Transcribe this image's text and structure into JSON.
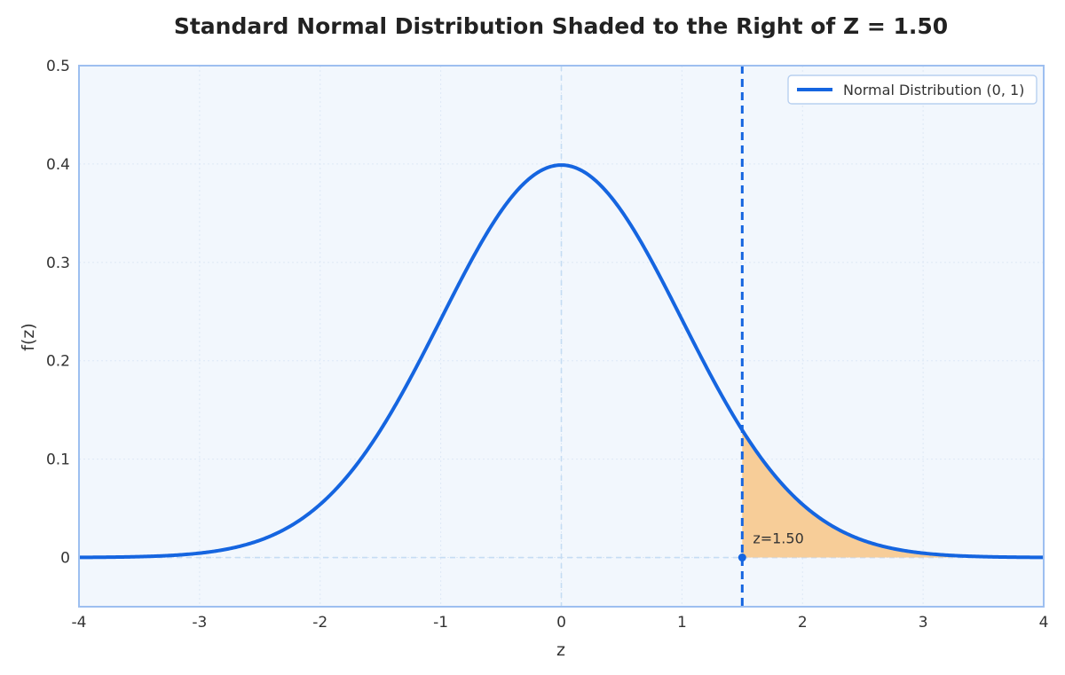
{
  "chart_data": {
    "type": "line",
    "title": "Standard Normal Distribution Shaded to the Right of Z = 1.50",
    "xlabel": "z",
    "ylabel": "f(z)",
    "xlim": [
      -4,
      4
    ],
    "ylim": [
      -0.05,
      0.5
    ],
    "x_ticks": [
      -4,
      -3,
      -2,
      -1,
      0,
      1,
      2,
      3,
      4
    ],
    "x_tick_labels": [
      "-4",
      "-3",
      "-2",
      "-1",
      "0",
      "1",
      "2",
      "3",
      "4"
    ],
    "y_ticks": [
      0,
      0.1,
      0.2,
      0.3,
      0.4,
      0.5
    ],
    "y_tick_labels": [
      "0",
      "0.1",
      "0.2",
      "0.3",
      "0.4",
      "0.5"
    ],
    "grid": true,
    "legend_position": "top-right",
    "series": [
      {
        "name": "Normal Distribution (0, 1)",
        "mean": 0,
        "sd": 1,
        "x": [
          -4,
          -3.5,
          -3,
          -2.5,
          -2,
          -1.5,
          -1,
          -0.5,
          0,
          0.5,
          1,
          1.5,
          2,
          2.5,
          3,
          3.5,
          4
        ],
        "y": [
          0.0001,
          0.0009,
          0.0044,
          0.0175,
          0.054,
          0.1295,
          0.242,
          0.3521,
          0.3989,
          0.3521,
          0.242,
          0.1295,
          0.054,
          0.0175,
          0.0044,
          0.0009,
          0.0001
        ],
        "color": "#1565e0"
      }
    ],
    "shaded_region": {
      "from": 1.5,
      "to": 4,
      "color": "#f7cd98"
    },
    "marker_line": {
      "x": 1.5,
      "color": "#1565e0"
    },
    "annotation": {
      "text": "z=1.50",
      "x": 1.5,
      "y": 0
    }
  },
  "colors": {
    "curve": "#1565e0",
    "plot_background": "#f2f7fd",
    "frame": "#9dbff0",
    "shade": "#f7cd98",
    "reference": "#c5dcf3"
  }
}
